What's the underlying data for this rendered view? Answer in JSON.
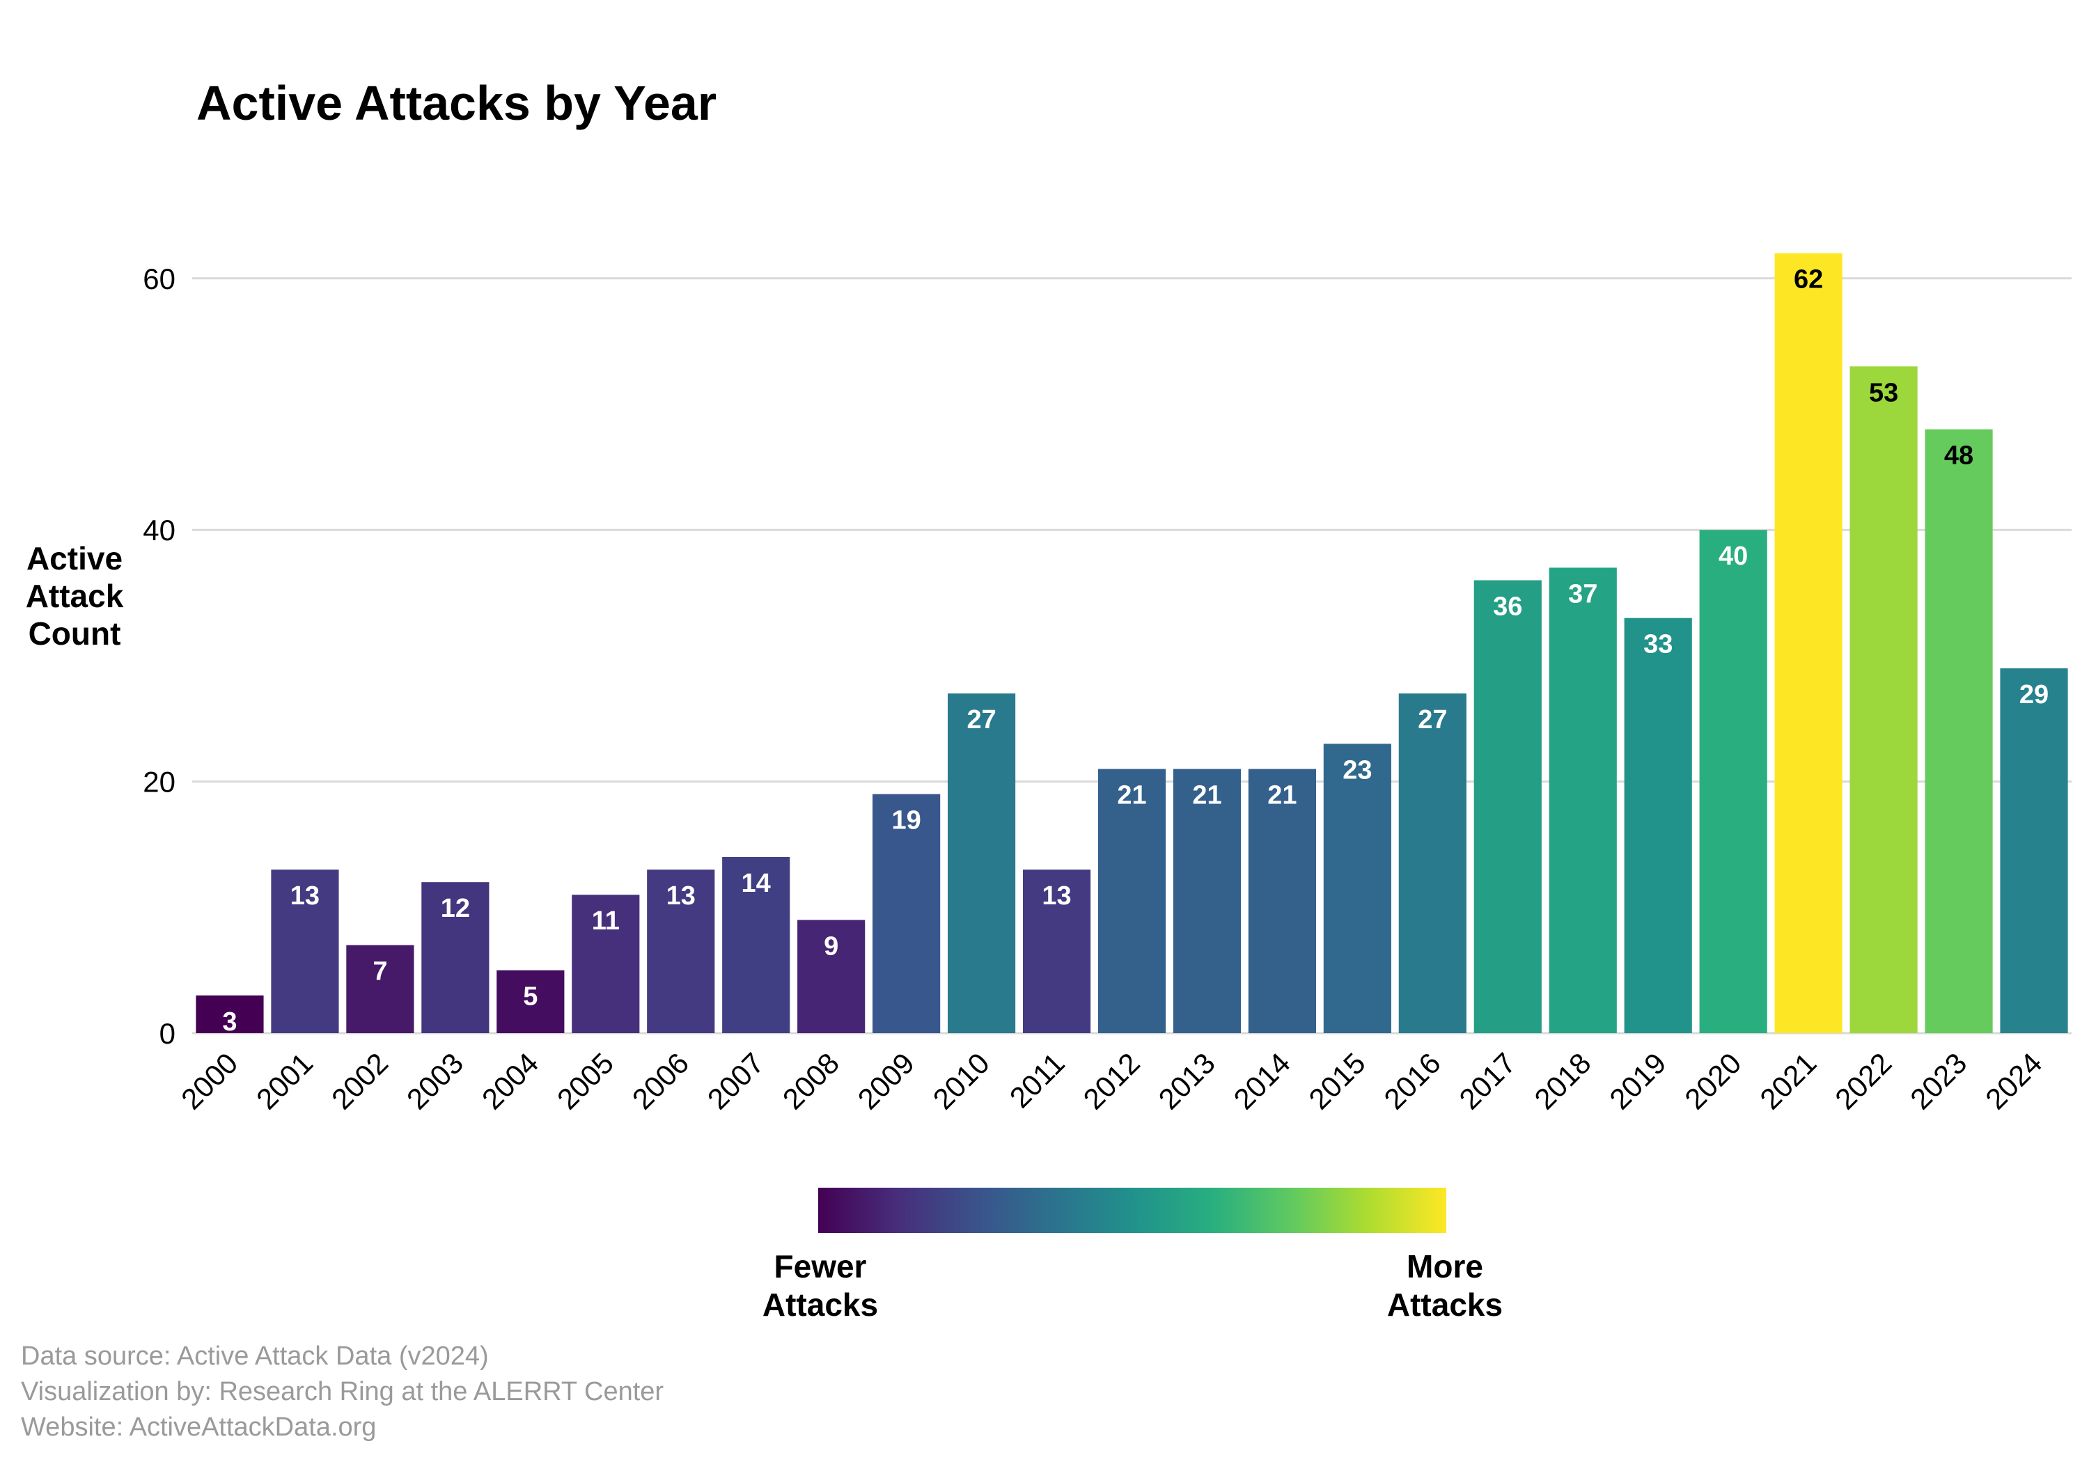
{
  "chart_data": {
    "type": "bar",
    "title": "Active Attacks by Year",
    "ylabel": [
      "Active",
      "Attack",
      "Count"
    ],
    "xlabel": "",
    "ylim": [
      0,
      65
    ],
    "yticks": [
      0,
      20,
      40,
      60
    ],
    "grid": true,
    "categories": [
      "2000",
      "2001",
      "2002",
      "2003",
      "2004",
      "2005",
      "2006",
      "2007",
      "2008",
      "2009",
      "2010",
      "2011",
      "2012",
      "2013",
      "2014",
      "2015",
      "2016",
      "2017",
      "2018",
      "2019",
      "2020",
      "2021",
      "2022",
      "2023",
      "2024"
    ],
    "values": [
      3,
      13,
      7,
      12,
      5,
      11,
      13,
      14,
      9,
      19,
      27,
      13,
      21,
      21,
      21,
      23,
      27,
      36,
      37,
      33,
      40,
      62,
      53,
      48,
      29
    ],
    "colorscale": "viridis",
    "colorscale_stops": [
      "#440154",
      "#472d7b",
      "#3b528b",
      "#2c728e",
      "#21918c",
      "#28ae80",
      "#5ec962",
      "#addc30",
      "#fde725"
    ],
    "legend": {
      "position": "bottom-center",
      "low_label": [
        "Fewer",
        "Attacks"
      ],
      "high_label": [
        "More",
        "Attacks"
      ]
    }
  },
  "caption": {
    "line1": "Data source: Active Attack Data (v2024)",
    "line2": "Visualization by: Research Ring at the ALERRT Center",
    "line3": "Website: ActiveAttackData.org"
  }
}
